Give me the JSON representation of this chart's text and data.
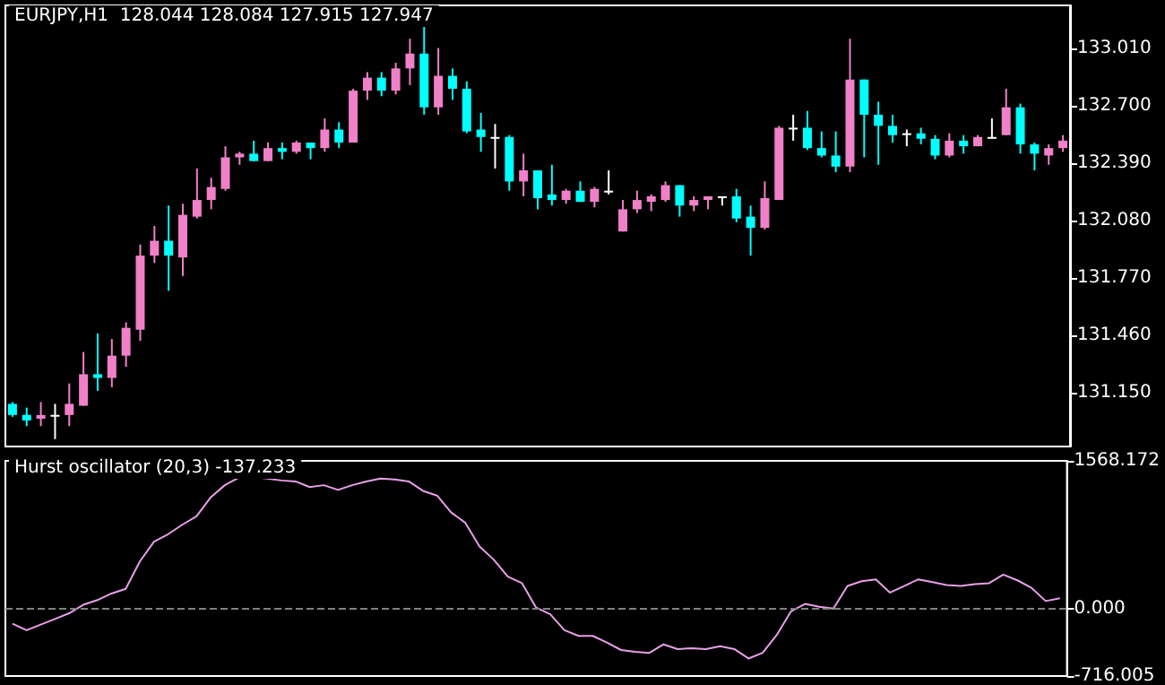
{
  "chart_data": [
    {
      "type": "candlestick",
      "title": "EURJPY,H1  128.044 128.084 127.915 127.947",
      "categories": [
        null,
        null,
        null,
        null,
        null,
        null,
        null,
        null,
        null,
        null,
        null,
        null,
        null,
        null,
        null,
        null,
        null,
        null,
        null,
        null,
        null,
        null,
        null,
        null,
        null,
        null,
        null,
        null,
        null,
        null,
        null,
        null,
        null,
        null,
        null,
        null,
        null,
        null,
        null,
        null,
        null,
        null,
        null,
        null,
        null,
        null,
        null,
        null,
        null,
        null,
        null,
        null,
        null,
        null,
        null,
        null,
        null,
        null,
        null,
        null,
        null,
        null,
        null,
        null,
        null,
        null,
        null,
        null,
        null,
        null,
        null,
        null,
        null,
        null,
        null
      ],
      "ohlc": [
        [
          131.09,
          131.1,
          131.02,
          131.03
        ],
        [
          131.03,
          131.07,
          130.97,
          131.0
        ],
        [
          131.01,
          131.1,
          130.97,
          131.03
        ],
        [
          131.03,
          131.09,
          130.9,
          131.03
        ],
        [
          131.03,
          131.2,
          130.97,
          131.09
        ],
        [
          131.08,
          131.37,
          131.08,
          131.25
        ],
        [
          131.25,
          131.47,
          131.16,
          131.23
        ],
        [
          131.23,
          131.44,
          131.18,
          131.35
        ],
        [
          131.35,
          131.53,
          131.29,
          131.5
        ],
        [
          131.49,
          131.95,
          131.43,
          131.89
        ],
        [
          131.89,
          132.05,
          131.85,
          131.97
        ],
        [
          131.97,
          132.16,
          131.7,
          131.89
        ],
        [
          131.88,
          132.17,
          131.78,
          132.11
        ],
        [
          132.1,
          132.36,
          132.09,
          132.19
        ],
        [
          132.19,
          132.31,
          132.14,
          132.26
        ],
        [
          132.25,
          132.48,
          132.24,
          132.42
        ],
        [
          132.42,
          132.45,
          132.38,
          132.44
        ],
        [
          132.44,
          132.51,
          132.4,
          132.4
        ],
        [
          132.4,
          132.5,
          132.4,
          132.47
        ],
        [
          132.47,
          132.5,
          132.41,
          132.45
        ],
        [
          132.45,
          132.51,
          132.44,
          132.5
        ],
        [
          132.5,
          132.5,
          132.41,
          132.47
        ],
        [
          132.47,
          132.63,
          132.45,
          132.57
        ],
        [
          132.57,
          132.61,
          132.47,
          132.5
        ],
        [
          132.5,
          132.79,
          132.5,
          132.78
        ],
        [
          132.78,
          132.88,
          132.73,
          132.85
        ],
        [
          132.85,
          132.88,
          132.75,
          132.78
        ],
        [
          132.78,
          132.93,
          132.76,
          132.9
        ],
        [
          132.9,
          133.06,
          132.81,
          132.98
        ],
        [
          132.98,
          133.13,
          132.65,
          132.69
        ],
        [
          132.69,
          133.01,
          132.65,
          132.86
        ],
        [
          132.86,
          132.9,
          132.73,
          132.79
        ],
        [
          132.79,
          132.83,
          132.55,
          132.56
        ],
        [
          132.57,
          132.66,
          132.45,
          132.53
        ],
        [
          132.53,
          132.6,
          132.36,
          132.53
        ],
        [
          132.53,
          132.54,
          132.24,
          132.29
        ],
        [
          132.29,
          132.44,
          132.21,
          132.35
        ],
        [
          132.35,
          132.35,
          132.14,
          132.2
        ],
        [
          132.22,
          132.38,
          132.16,
          132.19
        ],
        [
          132.19,
          132.25,
          132.17,
          132.24
        ],
        [
          132.24,
          132.29,
          132.18,
          132.18
        ],
        [
          132.18,
          132.26,
          132.15,
          132.25
        ],
        [
          132.24,
          132.35,
          132.22,
          132.24
        ],
        [
          132.02,
          132.19,
          132.02,
          132.14
        ],
        [
          132.14,
          132.24,
          132.12,
          132.19
        ],
        [
          132.18,
          132.22,
          132.13,
          132.21
        ],
        [
          132.19,
          132.29,
          132.18,
          132.27
        ],
        [
          132.27,
          132.27,
          132.1,
          132.16
        ],
        [
          132.16,
          132.21,
          132.13,
          132.19
        ],
        [
          132.19,
          132.21,
          132.14,
          132.21
        ],
        [
          132.21,
          132.21,
          132.16,
          132.21
        ],
        [
          132.21,
          132.25,
          132.07,
          132.09
        ],
        [
          132.1,
          132.16,
          131.89,
          132.04
        ],
        [
          132.04,
          132.29,
          132.03,
          132.2
        ],
        [
          132.19,
          132.59,
          132.19,
          132.58
        ],
        [
          132.58,
          132.65,
          132.51,
          132.58
        ],
        [
          132.58,
          132.67,
          132.46,
          132.47
        ],
        [
          132.47,
          132.56,
          132.42,
          132.43
        ],
        [
          132.43,
          132.56,
          132.34,
          132.37
        ],
        [
          132.37,
          133.06,
          132.34,
          132.84
        ],
        [
          132.84,
          132.84,
          132.42,
          132.65
        ],
        [
          132.65,
          132.72,
          132.38,
          132.59
        ],
        [
          132.59,
          132.65,
          132.5,
          132.54
        ],
        [
          132.55,
          132.57,
          132.48,
          132.55
        ],
        [
          132.55,
          132.58,
          132.49,
          132.52
        ],
        [
          132.52,
          132.54,
          132.41,
          132.43
        ],
        [
          132.43,
          132.55,
          132.42,
          132.51
        ],
        [
          132.51,
          132.54,
          132.44,
          132.48
        ],
        [
          132.48,
          132.54,
          132.48,
          132.53
        ],
        [
          132.53,
          132.63,
          132.52,
          132.53
        ],
        [
          132.54,
          132.79,
          132.54,
          132.69
        ],
        [
          132.69,
          132.71,
          132.44,
          132.49
        ],
        [
          132.49,
          132.5,
          132.35,
          132.44
        ],
        [
          132.43,
          132.49,
          132.38,
          132.47
        ],
        [
          132.47,
          132.54,
          132.45,
          132.51
        ]
      ],
      "colors": [
        "#00ffff",
        "#00ffff",
        "#f080c8",
        "#ffffff",
        "#f080c8",
        "#f080c8",
        "#00ffff",
        "#f080c8",
        "#f080c8",
        "#f080c8",
        "#f080c8",
        "#00ffff",
        "#f080c8",
        "#f080c8",
        "#f080c8",
        "#f080c8",
        "#f080c8",
        "#00ffff",
        "#f080c8",
        "#00ffff",
        "#f080c8",
        "#00ffff",
        "#f080c8",
        "#00ffff",
        "#f080c8",
        "#f080c8",
        "#00ffff",
        "#f080c8",
        "#f080c8",
        "#00ffff",
        "#f080c8",
        "#00ffff",
        "#00ffff",
        "#00ffff",
        "#ffffff",
        "#00ffff",
        "#f080c8",
        "#00ffff",
        "#00ffff",
        "#f080c8",
        "#00ffff",
        "#f080c8",
        "#ffffff",
        "#f080c8",
        "#f080c8",
        "#f080c8",
        "#f080c8",
        "#00ffff",
        "#f080c8",
        "#f080c8",
        "#ffffff",
        "#00ffff",
        "#00ffff",
        "#f080c8",
        "#f080c8",
        "#ffffff",
        "#00ffff",
        "#00ffff",
        "#00ffff",
        "#f080c8",
        "#00ffff",
        "#00ffff",
        "#00ffff",
        "#ffffff",
        "#00ffff",
        "#00ffff",
        "#f080c8",
        "#00ffff",
        "#f080c8",
        "#ffffff",
        "#f080c8",
        "#00ffff",
        "#00ffff",
        "#f080c8",
        "#f080c8"
      ],
      "ylim": [
        130.86,
        133.24
      ],
      "yticks": [
        {
          "value": 131.15,
          "label": "131.150"
        },
        {
          "value": 131.46,
          "label": "131.460"
        },
        {
          "value": 131.77,
          "label": "131.770"
        },
        {
          "value": 132.08,
          "label": "132.080"
        },
        {
          "value": 132.39,
          "label": "132.390"
        },
        {
          "value": 132.7,
          "label": "132.700"
        },
        {
          "value": 133.01,
          "label": "133.010"
        }
      ],
      "tick_labels": "y"
    },
    {
      "type": "line",
      "title": "Hurst oscillator (20,3) -137.233",
      "categories": [
        null,
        null,
        null,
        null,
        null,
        null,
        null,
        null,
        null,
        null,
        null,
        null,
        null,
        null,
        null,
        null,
        null,
        null,
        null,
        null,
        null,
        null,
        null,
        null,
        null,
        null,
        null,
        null,
        null,
        null,
        null,
        null,
        null,
        null,
        null,
        null,
        null,
        null,
        null,
        null,
        null,
        null,
        null,
        null,
        null,
        null,
        null,
        null,
        null,
        null,
        null,
        null,
        null,
        null,
        null,
        null,
        null,
        null,
        null,
        null,
        null,
        null,
        null,
        null,
        null,
        null,
        null,
        null,
        null,
        null,
        null,
        null,
        null,
        null,
        null
      ],
      "series": [
        {
          "color": "#e8a0e8",
          "values": [
            -160,
            -230,
            -170,
            -110,
            -50,
            40,
            90,
            160,
            210,
            500,
            710,
            790,
            890,
            980,
            1180,
            1310,
            1390,
            1400,
            1380,
            1360,
            1350,
            1290,
            1310,
            1260,
            1310,
            1350,
            1380,
            1370,
            1350,
            1250,
            1200,
            1020,
            910,
            660,
            520,
            340,
            270,
            10,
            -60,
            -230,
            -290,
            -290,
            -360,
            -440,
            -460,
            -470,
            -380,
            -430,
            -420,
            -430,
            -400,
            -430,
            -530,
            -470,
            -280,
            -30,
            50,
            20,
            0,
            240,
            290,
            310,
            170,
            240,
            310,
            280,
            250,
            240,
            260,
            270,
            360,
            300,
            220,
            80,
            110
          ]
        }
      ],
      "ylim": [
        -716.005,
        1568.172
      ],
      "yticks": [
        1568.172,
        {
          "value": 0,
          "label": "0.000"
        },
        -716.005
      ],
      "ref_lines": [
        {
          "axis": "y",
          "value": 0,
          "color": "#808080",
          "line_style": "dashed"
        }
      ],
      "tick_labels": "y"
    }
  ]
}
